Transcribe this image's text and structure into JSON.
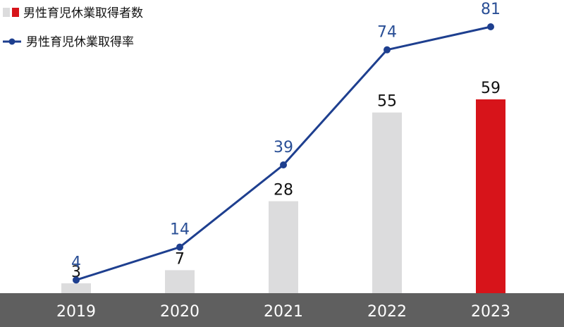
{
  "legend": {
    "bar_label": "男性育児休業取得者数",
    "line_label": "男性育児休業取得率"
  },
  "colors": {
    "bar_default": "#dcdcdd",
    "bar_highlight": "#d7141a",
    "line": "#1e3f8f",
    "line_label": "#2a4f96",
    "axis_band": "#5f5f5f",
    "axis_text": "#ffffff",
    "bar_label": "#111111"
  },
  "chart_data": {
    "type": "bar",
    "categories": [
      "2019",
      "2020",
      "2021",
      "2022",
      "2023"
    ],
    "series": [
      {
        "name": "男性育児休業取得者数",
        "type": "bar",
        "values": [
          3,
          7,
          28,
          55,
          59
        ],
        "highlight_index": 4
      },
      {
        "name": "男性育児休業取得率",
        "type": "line",
        "values": [
          4,
          14,
          39,
          74,
          81
        ]
      }
    ],
    "bar_ylim": [
      0,
      64
    ],
    "line_ylim": [
      0,
      88
    ],
    "legend_position": "top-left",
    "grid": false
  }
}
